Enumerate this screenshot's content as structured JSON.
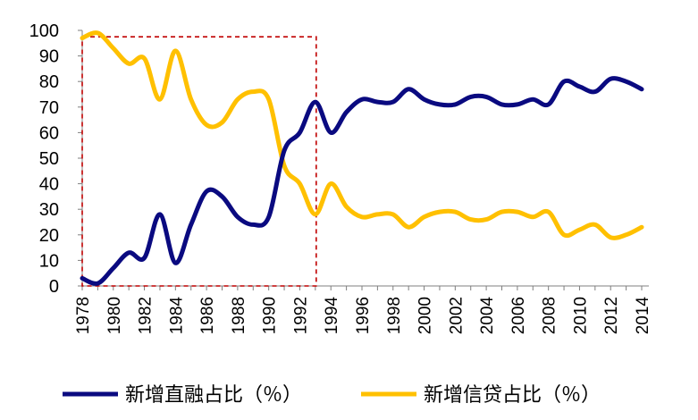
{
  "chart_data": {
    "type": "line",
    "title": "",
    "xlabel": "",
    "ylabel": "",
    "ylim": [
      0,
      100
    ],
    "yticks": [
      0,
      10,
      20,
      30,
      40,
      50,
      60,
      70,
      80,
      90,
      100
    ],
    "xlim": [
      1978,
      2014
    ],
    "xticks": [
      "1978",
      "1980",
      "1982",
      "1984",
      "1986",
      "1988",
      "1990",
      "1992",
      "1994",
      "1996",
      "1998",
      "2000",
      "2002",
      "2004",
      "2006",
      "2008",
      "2010",
      "2012",
      "2014"
    ],
    "grid": false,
    "legend_position": "bottom",
    "series": [
      {
        "name": "新增直融占比（％）",
        "color": "#0a0a80",
        "x": [
          1978,
          1979,
          1980,
          1981,
          1982,
          1983,
          1984,
          1985,
          1986,
          1987,
          1988,
          1989,
          1990,
          1991,
          1992,
          1993,
          1994,
          1995,
          1996,
          1997,
          1998,
          1999,
          2000,
          2001,
          2002,
          2003,
          2004,
          2005,
          2006,
          2007,
          2008,
          2009,
          2010,
          2011,
          2012,
          2013,
          2014
        ],
        "values": [
          3,
          1,
          7,
          13,
          11,
          28,
          9,
          24,
          37,
          35,
          27,
          24,
          27,
          53,
          60,
          72,
          60,
          68,
          73,
          72,
          72,
          77,
          73,
          71,
          71,
          74,
          74,
          71,
          71,
          73,
          71,
          80,
          78,
          76,
          81,
          80,
          77
        ]
      },
      {
        "name": "新增信贷占比（％）",
        "color": "#ffc000",
        "x": [
          1978,
          1979,
          1980,
          1981,
          1982,
          1983,
          1984,
          1985,
          1986,
          1987,
          1988,
          1989,
          1990,
          1991,
          1992,
          1993,
          1994,
          1995,
          1996,
          1997,
          1998,
          1999,
          2000,
          2001,
          2002,
          2003,
          2004,
          2005,
          2006,
          2007,
          2008,
          2009,
          2010,
          2011,
          2012,
          2013,
          2014
        ],
        "values": [
          97,
          99,
          93,
          87,
          89,
          73,
          92,
          73,
          63,
          64,
          73,
          76,
          73,
          47,
          40,
          28,
          40,
          31,
          27,
          28,
          28,
          23,
          27,
          29,
          29,
          26,
          26,
          29,
          29,
          27,
          29,
          20,
          22,
          24,
          19,
          20,
          23
        ]
      }
    ],
    "annotations": [
      {
        "type": "dashed-box",
        "x_range": [
          1978,
          1993
        ],
        "y_range": [
          0,
          97.5
        ],
        "color": "#c00000"
      }
    ]
  }
}
